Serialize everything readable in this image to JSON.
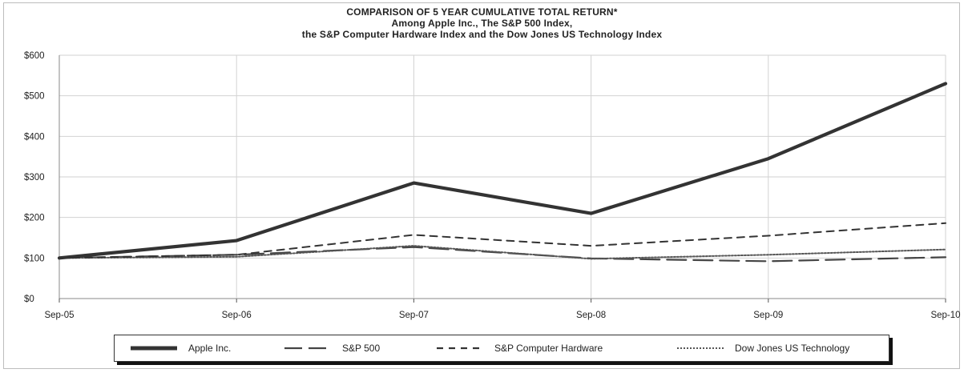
{
  "title_lines": [
    "COMPARISON OF 5 YEAR CUMULATIVE TOTAL RETURN*",
    "Among Apple Inc., The S&P 500 Index,",
    "the S&P Computer Hardware Index and the Dow Jones US Technology Index"
  ],
  "chart_data": {
    "type": "line",
    "categories": [
      "Sep-05",
      "Sep-06",
      "Sep-07",
      "Sep-08",
      "Sep-09",
      "Sep-10"
    ],
    "ylim": [
      0,
      600
    ],
    "yticks": [
      0,
      100,
      200,
      300,
      400,
      500,
      600
    ],
    "ytick_labels": [
      "$0",
      "$100",
      "$200",
      "$300",
      "$400",
      "$500",
      "$600"
    ],
    "grid": true,
    "legend_position": "bottom",
    "series": [
      {
        "name": "Apple Inc.",
        "values": [
          100,
          143,
          285,
          210,
          345,
          530
        ],
        "color": "#333333",
        "style": "solid-thick"
      },
      {
        "name": "S&P 500",
        "values": [
          100,
          108,
          127,
          99,
          92,
          102
        ],
        "color": "#444444",
        "style": "long-dash"
      },
      {
        "name": "S&P Computer Hardware",
        "values": [
          100,
          108,
          157,
          130,
          155,
          186
        ],
        "color": "#333333",
        "style": "dash"
      },
      {
        "name": "Dow Jones US Technology",
        "values": [
          100,
          103,
          130,
          98,
          108,
          121
        ],
        "color": "#555555",
        "style": "dotted"
      }
    ]
  }
}
